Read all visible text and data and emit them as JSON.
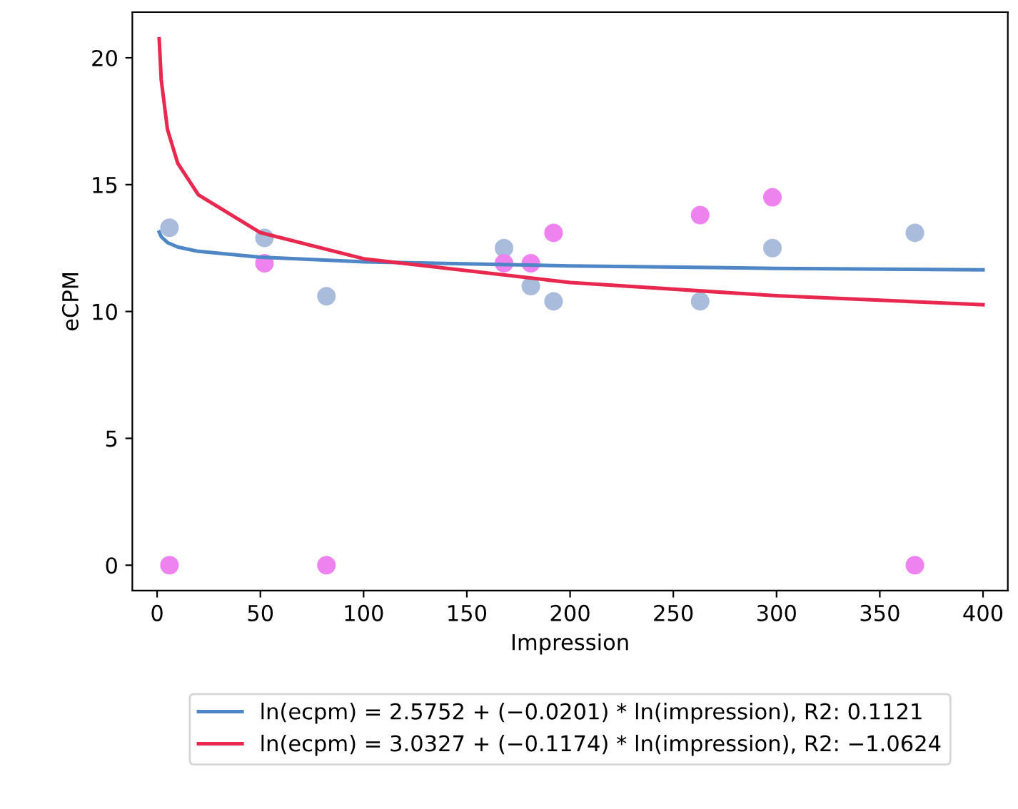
{
  "chart_data": {
    "type": "scatter",
    "xlabel": "Impression",
    "ylabel": "eCPM",
    "xlim": [
      -12,
      412
    ],
    "xticks": [
      0,
      50,
      100,
      150,
      200,
      250,
      300,
      350,
      400
    ],
    "ylim": [
      -1,
      21.8
    ],
    "yticks": [
      0,
      5,
      10,
      15,
      20
    ],
    "grid": false,
    "legend": "bottom",
    "series": [
      {
        "marker": "circle",
        "color": "#a9bcdb",
        "x": [
          6,
          52,
          82,
          168,
          181,
          192,
          263,
          298,
          367
        ],
        "values": [
          13.3,
          12.9,
          10.6,
          12.5,
          11.0,
          10.4,
          10.4,
          12.5,
          13.1
        ]
      },
      {
        "marker": "circle",
        "color": "#ee82ee",
        "x": [
          6,
          52,
          82,
          168,
          181,
          192,
          263,
          298,
          367
        ],
        "values": [
          0,
          11.9,
          0,
          11.9,
          11.9,
          13.1,
          13.8,
          14.5,
          0
        ]
      },
      {
        "type": "line",
        "name": "ln(ecpm) = 2.5752 + (−0.0201) * ln(impression), R2: 0.1121",
        "color": "#4f86c6",
        "marker": "none",
        "x": [
          1,
          2,
          5,
          10,
          20,
          50,
          100,
          200,
          300,
          400
        ],
        "values": [
          13.13,
          12.95,
          12.72,
          12.54,
          12.37,
          12.14,
          11.96,
          11.8,
          11.7,
          11.64
        ]
      },
      {
        "type": "line",
        "name": "ln(ecpm) = 3.0327 + (−0.1174) * ln(impression), R2: −1.0624",
        "color": "#e8284f",
        "marker": "none",
        "x": [
          1,
          2,
          5,
          10,
          20,
          50,
          100,
          200,
          300,
          400
        ],
        "values": [
          20.75,
          19.13,
          17.18,
          15.84,
          14.6,
          13.11,
          12.08,
          11.14,
          10.62,
          10.27
        ]
      }
    ]
  }
}
